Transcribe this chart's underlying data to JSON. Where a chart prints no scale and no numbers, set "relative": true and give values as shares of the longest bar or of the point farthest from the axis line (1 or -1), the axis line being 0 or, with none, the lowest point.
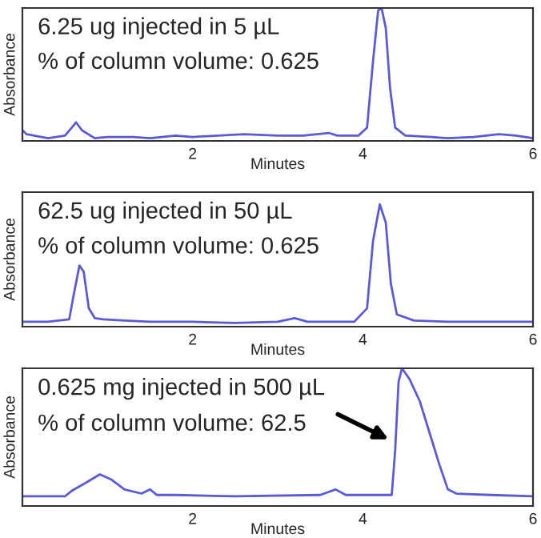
{
  "chart_data": [
    {
      "type": "line",
      "relative": true,
      "xlabel": "Minutes",
      "ylabel": "Absorbance",
      "xlim": [
        0,
        6
      ],
      "xticks": [
        2,
        4,
        6
      ],
      "tick_labels": "x",
      "grid": false,
      "legend": false,
      "annotations": [
        "6.25 ug injected in 5 µL",
        "% of column volume: 0.625"
      ],
      "series": [
        {
          "color": "#5a5ad8",
          "x": [
            0,
            0.05,
            0.3,
            0.5,
            0.58,
            0.63,
            0.7,
            0.85,
            1.0,
            1.3,
            1.5,
            1.8,
            2.0,
            2.3,
            2.6,
            3.0,
            3.3,
            3.6,
            3.7,
            3.95,
            4.05,
            4.12,
            4.18,
            4.22,
            4.27,
            4.32,
            4.38,
            4.5,
            4.8,
            5.0,
            5.3,
            5.6,
            5.8,
            6.0
          ],
          "values": [
            0.08,
            0.05,
            0.02,
            0.04,
            0.1,
            0.14,
            0.08,
            0.02,
            0.03,
            0.03,
            0.02,
            0.04,
            0.03,
            0.04,
            0.05,
            0.04,
            0.04,
            0.06,
            0.04,
            0.04,
            0.1,
            0.6,
            0.98,
            1.0,
            0.85,
            0.4,
            0.1,
            0.04,
            0.03,
            0.02,
            0.03,
            0.05,
            0.04,
            0.02
          ]
        }
      ]
    },
    {
      "type": "line",
      "relative": true,
      "xlabel": "Minutes",
      "ylabel": "Absorbance",
      "xlim": [
        0,
        6
      ],
      "xticks": [
        2,
        4,
        6
      ],
      "tick_labels": "x",
      "grid": false,
      "legend": false,
      "annotations": [
        "62.5 ug injected in 50 µL",
        "% of column volume: 0.625"
      ],
      "series": [
        {
          "color": "#5a5ad8",
          "x": [
            0,
            0.3,
            0.55,
            0.6,
            0.67,
            0.72,
            0.78,
            0.85,
            0.95,
            1.2,
            1.5,
            2.0,
            2.5,
            3.0,
            3.2,
            3.35,
            3.9,
            4.05,
            4.12,
            4.2,
            4.27,
            4.33,
            4.4,
            4.6,
            5.0,
            6.0
          ],
          "values": [
            0.04,
            0.04,
            0.06,
            0.25,
            0.5,
            0.45,
            0.15,
            0.07,
            0.06,
            0.05,
            0.04,
            0.04,
            0.03,
            0.04,
            0.07,
            0.04,
            0.04,
            0.15,
            0.7,
            1.0,
            0.85,
            0.35,
            0.1,
            0.05,
            0.04,
            0.04
          ]
        }
      ]
    },
    {
      "type": "line",
      "relative": true,
      "xlabel": "Minutes",
      "ylabel": "Absorbance",
      "xlim": [
        0,
        6
      ],
      "xticks": [
        2,
        4,
        6
      ],
      "tick_labels": "x",
      "grid": false,
      "legend": false,
      "annotations": [
        "0.625 mg injected in 500 µL",
        "% of column volume: 62.5"
      ],
      "series": [
        {
          "color": "#5a5ad8",
          "x": [
            0,
            0.5,
            0.58,
            0.75,
            0.91,
            1.05,
            1.2,
            1.4,
            1.5,
            1.58,
            1.8,
            2.5,
            3.5,
            3.68,
            3.8,
            4.34,
            4.38,
            4.42,
            4.46,
            4.55,
            4.67,
            4.8,
            4.9,
            5.0,
            5.1,
            5.5,
            6.0
          ],
          "values": [
            0.07,
            0.07,
            0.11,
            0.17,
            0.23,
            0.19,
            0.12,
            0.09,
            0.12,
            0.08,
            0.08,
            0.07,
            0.08,
            0.12,
            0.08,
            0.08,
            0.4,
            0.9,
            1.0,
            0.92,
            0.76,
            0.5,
            0.3,
            0.12,
            0.09,
            0.08,
            0.07
          ]
        }
      ]
    }
  ]
}
